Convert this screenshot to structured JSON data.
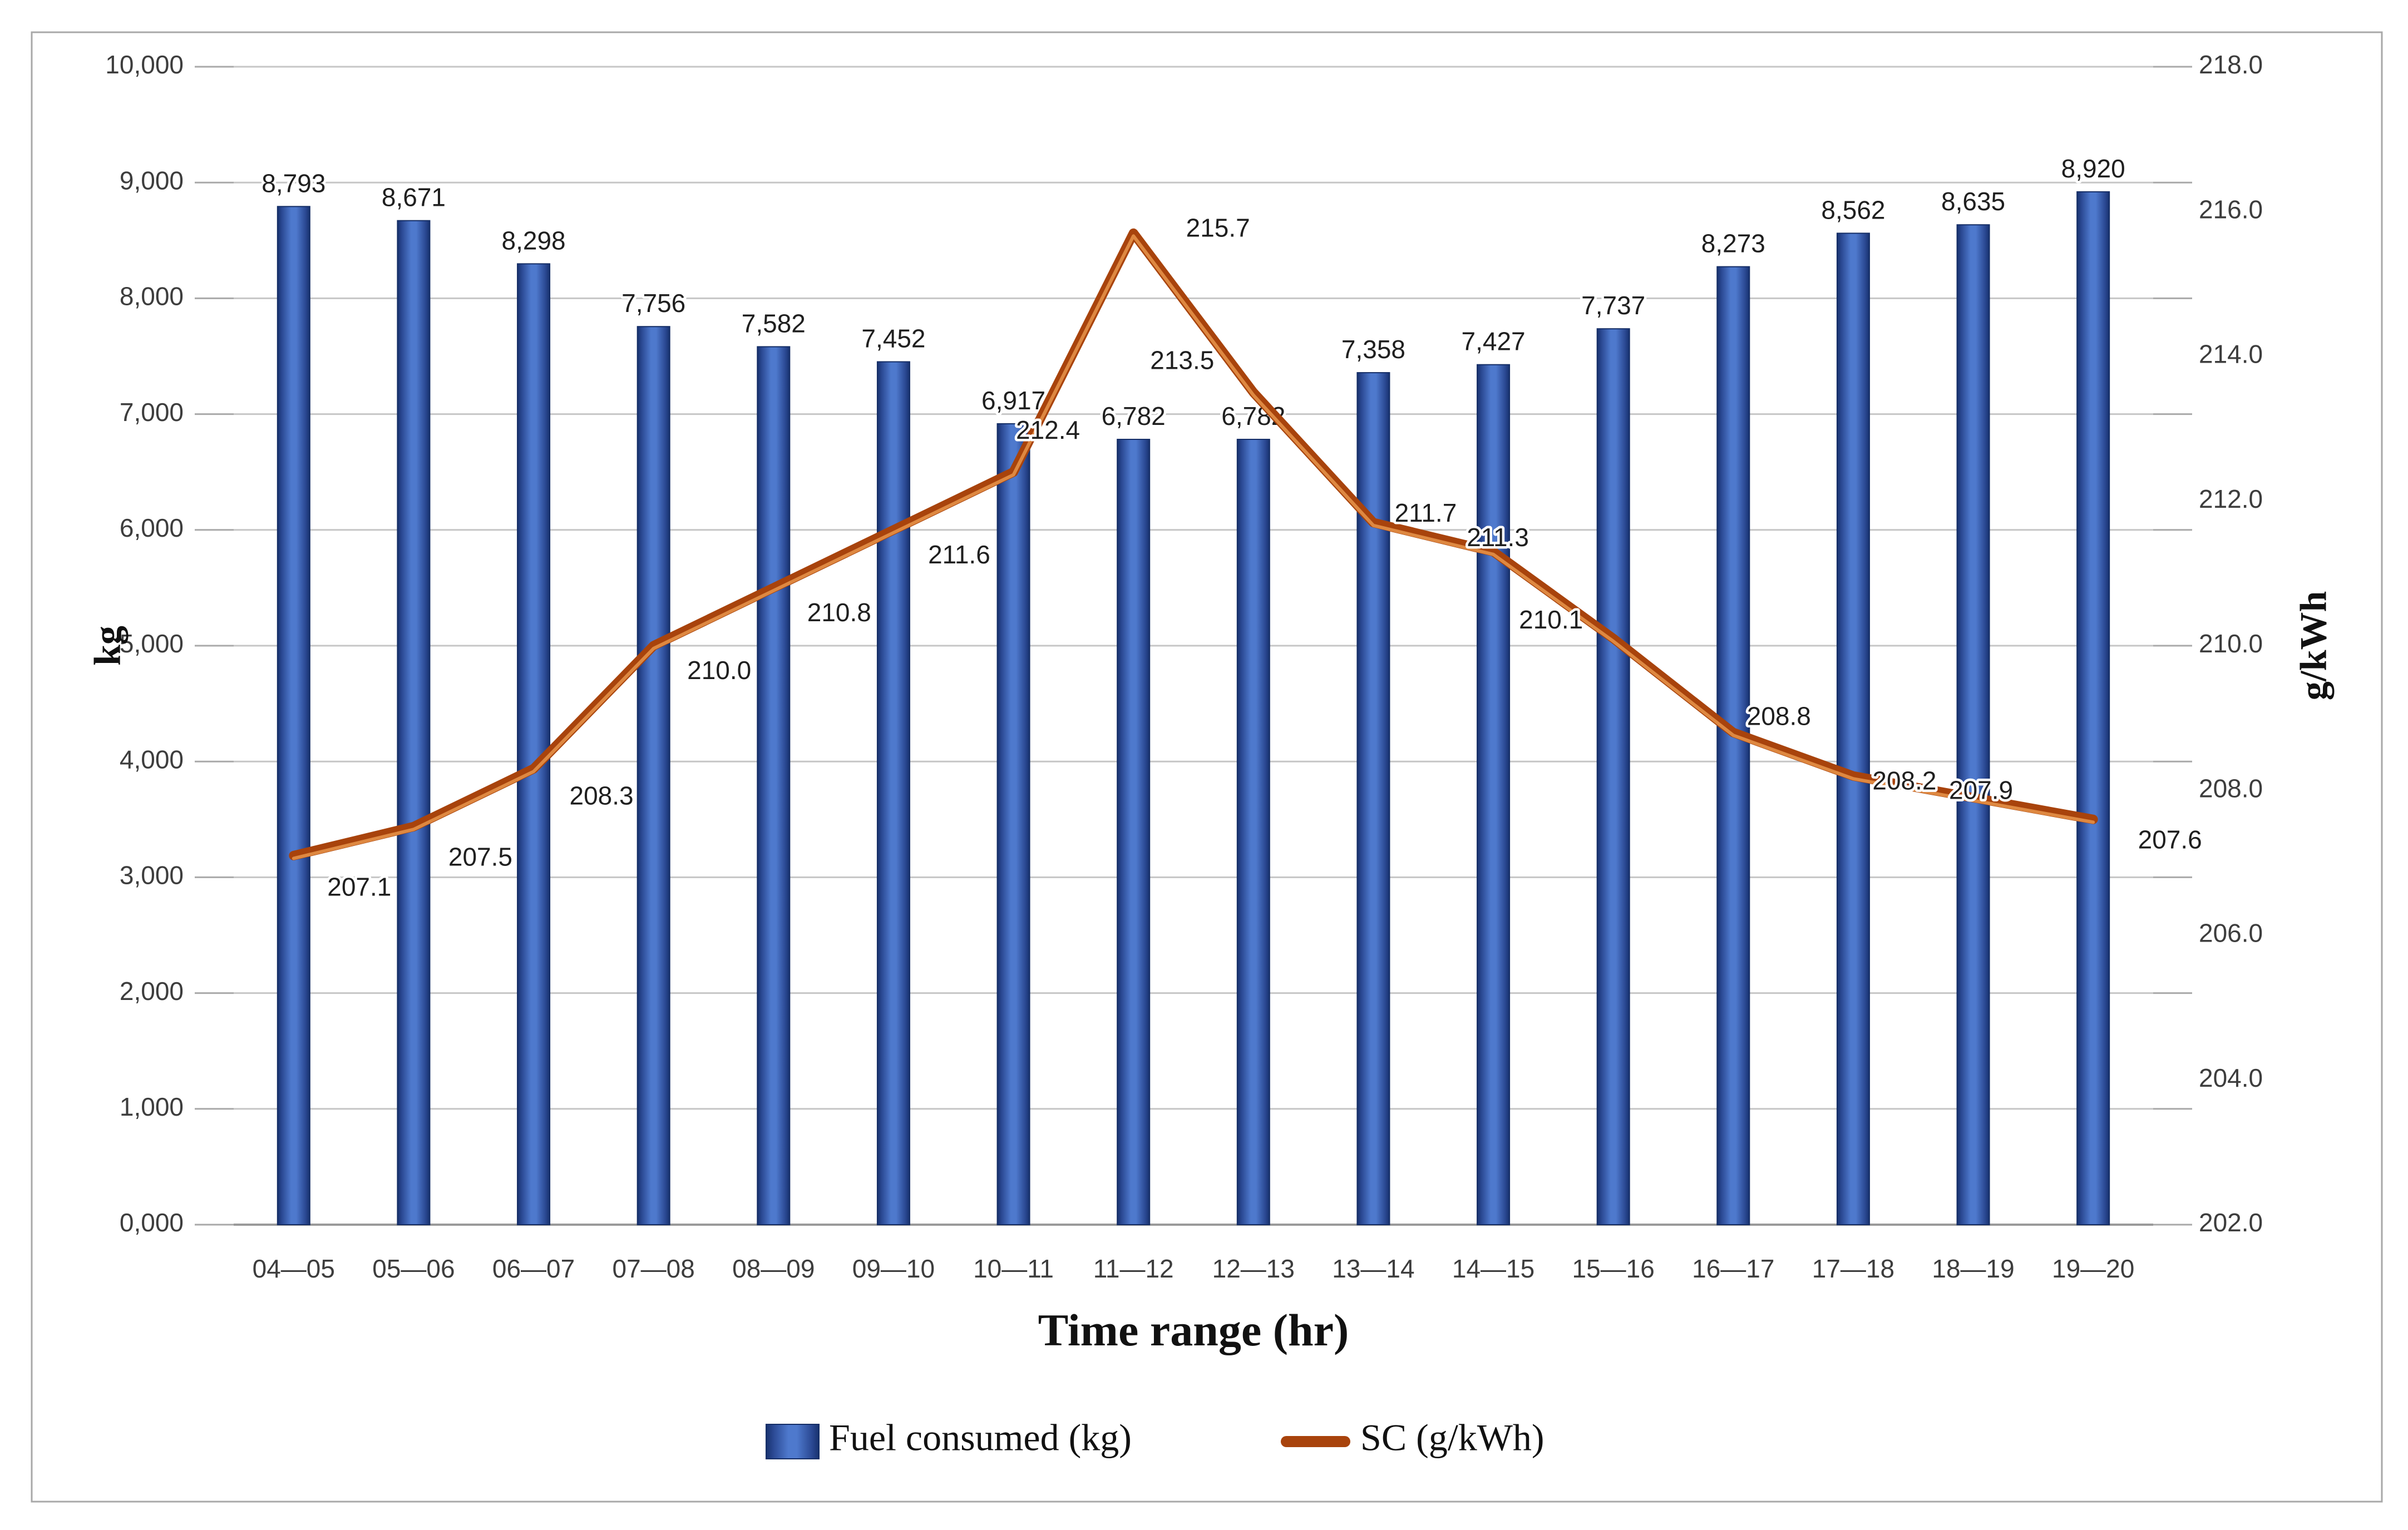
{
  "figure": {
    "background": "#ffffff",
    "frame_color": "#a8a8a8"
  },
  "chart_data": {
    "type": "combo",
    "categories": [
      "04—05",
      "05—06",
      "06—07",
      "07—08",
      "08—09",
      "09—10",
      "10—11",
      "11—12",
      "12—13",
      "13—14",
      "14—15",
      "15—16",
      "16—17",
      "17—18",
      "18—19",
      "19—20"
    ],
    "series": [
      {
        "name": "Fuel consumed (kg)",
        "type": "bar",
        "axis": "left",
        "values": [
          8793,
          8671,
          8298,
          7756,
          7582,
          7452,
          6917,
          6782,
          6782,
          7358,
          7427,
          7737,
          8273,
          8562,
          8635,
          8920
        ],
        "labels": [
          "8,793",
          "8,671",
          "8,298",
          "7,756",
          "7,582",
          "7,452",
          "6,917",
          "6,782",
          "6,782",
          "7,358",
          "7,427",
          "7,737",
          "8,273",
          "8,562",
          "8,635",
          "8,920"
        ]
      },
      {
        "name": "SC (g/kWh)",
        "type": "line",
        "axis": "right",
        "values": [
          207.1,
          207.5,
          208.3,
          210.0,
          210.8,
          211.6,
          212.4,
          215.7,
          213.5,
          211.7,
          211.3,
          210.1,
          208.8,
          208.2,
          207.9,
          207.6
        ],
        "labels": [
          "207.1",
          "207.5",
          "208.3",
          "210.0",
          "210.8",
          "211.6",
          "212.4",
          "215.7",
          "213.5",
          "211.7",
          "211.3",
          "210.1",
          "208.8",
          "208.2",
          "207.9",
          "207.6"
        ]
      }
    ],
    "left_axis": {
      "title": "kg",
      "min": 0,
      "max": 10000,
      "step": 1000,
      "tick_labels": [
        "0,000",
        "1,000",
        "2,000",
        "3,000",
        "4,000",
        "5,000",
        "6,000",
        "7,000",
        "8,000",
        "9,000",
        "10,000"
      ]
    },
    "right_axis": {
      "title": "g/kWh",
      "min": 202.0,
      "max": 218.0,
      "step": 2.0,
      "tick_labels": [
        "202.0",
        "204.0",
        "206.0",
        "208.0",
        "210.0",
        "212.0",
        "214.0",
        "216.0",
        "218.0"
      ]
    },
    "x_axis": {
      "title": "Time range (hr)"
    },
    "legend": [
      {
        "label": "Fuel consumed (kg)",
        "swatch": "bar"
      },
      {
        "label": "SC (g/kWh)",
        "swatch": "line"
      }
    ],
    "grid": true,
    "legend_position": "bottom"
  },
  "colors": {
    "bar_center": "#4e79cd",
    "bar_mid": "#2a4892",
    "bar_edge": "#17316d",
    "bar_border": "#152e66",
    "line_main": "#a8430c",
    "line_highlight": "#e08c44",
    "gridline": "#c6c6c6",
    "axis_line": "#9a9a9a",
    "tick": "#a9a9a9",
    "frame": "#a8a8a8"
  }
}
